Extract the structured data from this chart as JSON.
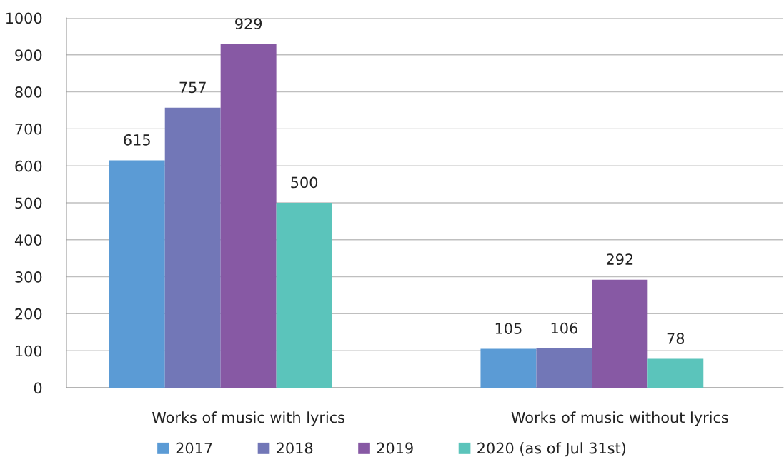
{
  "chart_data": {
    "type": "bar",
    "categories": [
      "Works of music with lyrics",
      "Works of music without lyrics"
    ],
    "series": [
      {
        "name": "2017",
        "color": "#5b9bd5",
        "values": [
          615,
          105
        ]
      },
      {
        "name": "2018",
        "color": "#7277b7",
        "values": [
          757,
          106
        ]
      },
      {
        "name": "2019",
        "color": "#8759a4",
        "values": [
          929,
          292
        ]
      },
      {
        "name": "2020 (as of Jul 31st)",
        "color": "#5bc4bb",
        "values": [
          500,
          78
        ]
      }
    ],
    "ylim": [
      0,
      1000
    ],
    "yticks": [
      0,
      100,
      200,
      300,
      400,
      500,
      600,
      700,
      800,
      900,
      1000
    ],
    "grid": "y",
    "legend": "bottom",
    "data_labels": true
  }
}
